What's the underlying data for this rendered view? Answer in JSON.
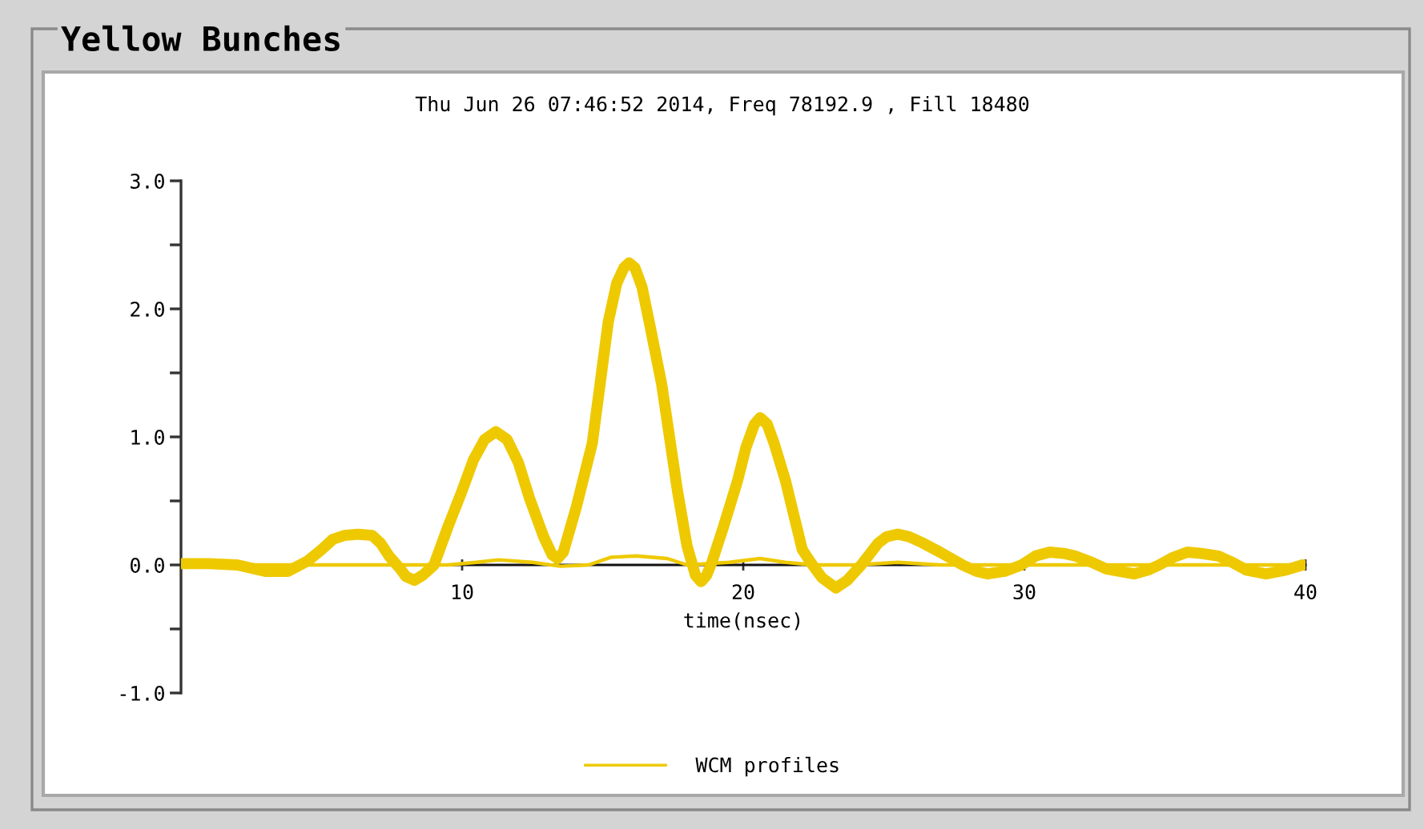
{
  "chart_data": {
    "type": "line",
    "title": "Yellow Bunches",
    "subtitle": "Thu Jun 26 07:46:52 2014, Freq 78192.9 , Fill 18480",
    "xlabel": "time(nsec)",
    "xlim": [
      0,
      40
    ],
    "xticks": [
      10,
      20,
      30,
      40
    ],
    "ylim": [
      -1,
      3
    ],
    "yticks": [
      {
        "value": -1,
        "label": "-1.0"
      },
      {
        "value": -0.5,
        "label": null
      },
      {
        "value": 0,
        "label": "0.0"
      },
      {
        "value": 0.5,
        "label": null
      },
      {
        "value": 1,
        "label": "1.0"
      },
      {
        "value": 1.5,
        "label": null
      },
      {
        "value": 2,
        "label": "2.0"
      },
      {
        "value": 2.5,
        "label": null
      },
      {
        "value": 3,
        "label": "3.0"
      }
    ],
    "legend": "bottom",
    "series": [
      {
        "name": "WCM profiles",
        "color": "#eec900",
        "x": [
          0,
          1,
          2,
          3,
          3.8,
          4.5,
          5.0,
          5.4,
          5.8,
          6.3,
          6.8,
          7.1,
          7.4,
          7.8,
          8.0,
          8.3,
          8.6,
          9.0,
          9.5,
          10.0,
          10.4,
          10.8,
          11.2,
          11.6,
          12.0,
          12.4,
          12.9,
          13.2,
          13.4,
          13.6,
          14.06,
          14.63,
          15.2,
          15.5,
          15.75,
          15.94,
          16.15,
          16.4,
          16.7,
          17.1,
          17.66,
          18.0,
          18.3,
          18.5,
          18.7,
          18.9,
          19.3,
          19.8,
          20.1,
          20.4,
          20.6,
          20.85,
          21.1,
          21.5,
          22.1,
          22.4,
          22.8,
          23.3,
          23.7,
          24.2,
          24.8,
          25.1,
          25.5,
          25.9,
          26.4,
          27.0,
          27.8,
          28.3,
          28.7,
          29.3,
          29.9,
          30.4,
          30.9,
          31.4,
          31.8,
          32.4,
          32.9,
          33.9,
          34.4,
          34.8,
          35.3,
          35.8,
          36.3,
          36.9,
          37.4,
          37.9,
          38.6,
          39.3,
          39.9
        ],
        "values": [
          0.01,
          0.01,
          0.0,
          -0.05,
          -0.05,
          0.03,
          0.12,
          0.2,
          0.23,
          0.24,
          0.23,
          0.17,
          0.07,
          -0.03,
          -0.09,
          -0.12,
          -0.08,
          0.0,
          0.3,
          0.58,
          0.82,
          0.98,
          1.04,
          0.98,
          0.8,
          0.52,
          0.22,
          0.08,
          0.05,
          0.1,
          0.45,
          0.95,
          1.9,
          2.2,
          2.32,
          2.36,
          2.32,
          2.17,
          1.85,
          1.41,
          0.58,
          0.15,
          -0.08,
          -0.13,
          -0.08,
          0.03,
          0.3,
          0.66,
          0.92,
          1.1,
          1.15,
          1.1,
          0.95,
          0.66,
          0.12,
          0.02,
          -0.1,
          -0.18,
          -0.12,
          0.0,
          0.17,
          0.22,
          0.24,
          0.22,
          0.17,
          0.1,
          0.0,
          -0.05,
          -0.07,
          -0.05,
          0.0,
          0.07,
          0.1,
          0.09,
          0.07,
          0.02,
          -0.03,
          -0.07,
          -0.04,
          0.0,
          0.06,
          0.1,
          0.09,
          0.07,
          0.02,
          -0.04,
          -0.07,
          -0.04,
          0.0
        ]
      },
      {
        "color": "#eec900",
        "x": [
          0,
          5,
          7,
          9.5,
          10.5,
          11.3,
          12.5,
          13.5,
          14.5,
          15.3,
          16.2,
          17.3,
          18.0,
          19.5,
          20.6,
          21.5,
          22.5,
          24.0,
          25.5,
          27.0,
          30.0,
          35.0,
          40.0
        ],
        "values": [
          0.0,
          0.0,
          0.0,
          0.0,
          0.02,
          0.04,
          0.02,
          -0.01,
          0.0,
          0.06,
          0.07,
          0.05,
          0.0,
          0.02,
          0.05,
          0.02,
          0.0,
          0.0,
          0.02,
          0.0,
          0.0,
          0.0,
          0.0
        ]
      }
    ]
  }
}
